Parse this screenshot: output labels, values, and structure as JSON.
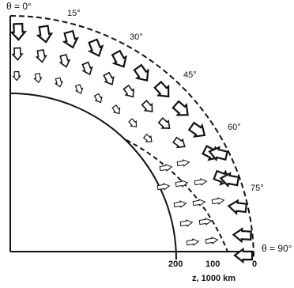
{
  "diagram": {
    "theta_top_label": "θ = 0°",
    "theta_right_label": "θ = 90°",
    "angle_ticks": [
      "15°",
      "30°",
      "45°",
      "60°",
      "75°"
    ],
    "depth_ticks": [
      "200",
      "100",
      "0"
    ],
    "depth_axis_label": "z, 1000 km"
  }
}
